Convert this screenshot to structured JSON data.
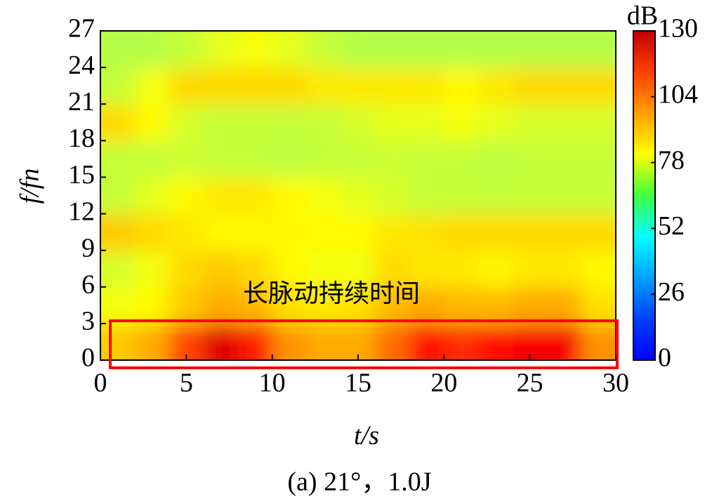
{
  "chart_data": {
    "type": "heatmap",
    "xlabel": "t/s",
    "ylabel": "f/fn",
    "colorbar_label": "dB",
    "annotation": "长脉动持续时间",
    "caption": "(a) 21°，1.0J",
    "x": [
      1,
      3,
      5,
      7,
      9,
      11,
      13,
      15,
      17,
      19,
      21,
      23,
      25,
      27,
      29
    ],
    "y": [
      1.5,
      4.5,
      7.5,
      10.5,
      13.5,
      16.5,
      19.5,
      22.5,
      25.5
    ],
    "values": [
      [
        88,
        92,
        105,
        118,
        110,
        95,
        92,
        92,
        100,
        112,
        108,
        112,
        115,
        115,
        95
      ],
      [
        80,
        82,
        88,
        92,
        90,
        85,
        84,
        85,
        90,
        92,
        90,
        90,
        92,
        92,
        85
      ],
      [
        76,
        80,
        86,
        88,
        86,
        82,
        80,
        80,
        86,
        84,
        84,
        82,
        84,
        84,
        82
      ],
      [
        88,
        86,
        84,
        82,
        82,
        82,
        82,
        82,
        84,
        85,
        86,
        86,
        86,
        86,
        86
      ],
      [
        74,
        78,
        82,
        84,
        84,
        82,
        80,
        78,
        76,
        74,
        74,
        74,
        74,
        74,
        74
      ],
      [
        74,
        74,
        75,
        74,
        74,
        73,
        74,
        74,
        75,
        74,
        74,
        73,
        74,
        74,
        74
      ],
      [
        86,
        82,
        76,
        74,
        74,
        74,
        74,
        76,
        78,
        78,
        80,
        78,
        76,
        76,
        76
      ],
      [
        74,
        80,
        86,
        86,
        86,
        86,
        84,
        84,
        84,
        84,
        82,
        84,
        86,
        86,
        86
      ],
      [
        72,
        72,
        74,
        78,
        80,
        78,
        74,
        72,
        72,
        72,
        72,
        72,
        72,
        72,
        72
      ]
    ],
    "xlim": [
      0,
      30
    ],
    "xticks": [
      0,
      5,
      10,
      15,
      20,
      25,
      30
    ],
    "ylim": [
      0,
      27
    ],
    "yticks": [
      0,
      3,
      6,
      9,
      12,
      15,
      18,
      21,
      24,
      27
    ],
    "zlim": [
      0,
      130
    ],
    "zticks": [
      0,
      26,
      52,
      78,
      104,
      130
    ],
    "colormap": "jet"
  }
}
